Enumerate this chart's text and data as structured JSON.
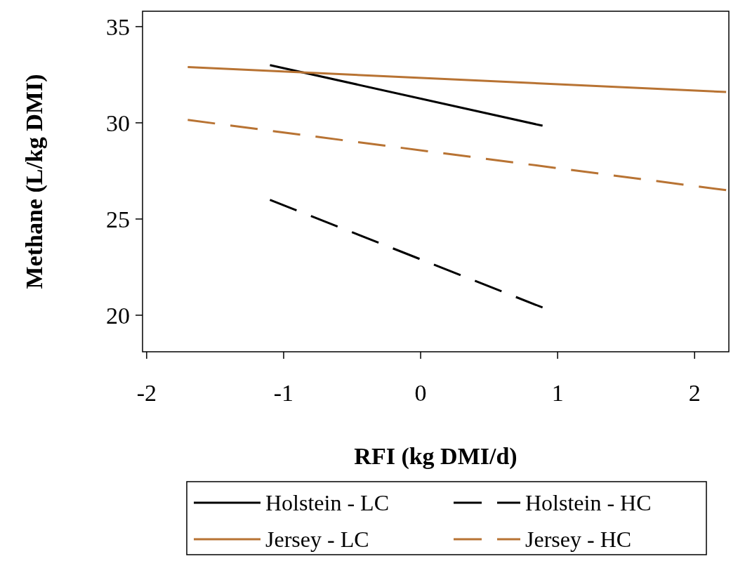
{
  "chart_data": {
    "type": "line",
    "xlabel": "RFI (kg DMI/d)",
    "ylabel": "Methane (L/kg DMI)",
    "xlim": [
      -2.03,
      2.25
    ],
    "xticks": [
      -2,
      -1,
      0,
      1,
      2
    ],
    "ylim": [
      18.1,
      35.8
    ],
    "yticks": [
      20,
      25,
      30,
      35
    ],
    "grid": false,
    "legend": "bottom",
    "marker": "none",
    "series": [
      {
        "name": "Holstein - LC",
        "color": "#000000",
        "line_style": "solid",
        "x": [
          -1.1,
          0.89
        ],
        "values": [
          33.0,
          29.85
        ]
      },
      {
        "name": "Holstein - HC",
        "color": "#000000",
        "line_style": "dashed",
        "x": [
          -1.1,
          0.89
        ],
        "values": [
          26.0,
          20.4
        ]
      },
      {
        "name": "Jersey - LC",
        "color": "#b87333",
        "line_style": "solid",
        "x": [
          -1.7,
          2.23
        ],
        "values": [
          32.9,
          31.6
        ]
      },
      {
        "name": "Jersey - HC",
        "color": "#b87333",
        "line_style": "dashed",
        "x": [
          -1.7,
          2.23
        ],
        "values": [
          30.15,
          26.5
        ]
      }
    ]
  }
}
